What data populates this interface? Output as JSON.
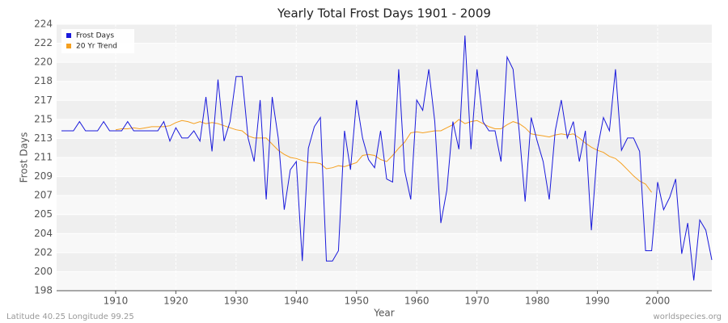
{
  "chart_data": {
    "type": "line",
    "title": "Yearly Total Frost Days 1901 - 2009",
    "x_label": "Year",
    "y_label": "Frost Days",
    "footer_left": "Latitude 40.25 Longitude 99.25",
    "footer_right": "worldspecies.org",
    "xlim": [
      1900.2,
      2009
    ],
    "xticks": [
      1910,
      1920,
      1930,
      1940,
      1950,
      1960,
      1970,
      1980,
      1990,
      2000
    ],
    "ylim": [
      198,
      224
    ],
    "yticks": [
      198,
      {
        "value": 199.857,
        "label": "200"
      },
      {
        "value": 201.714,
        "label": "202"
      },
      {
        "value": 203.571,
        "label": "204"
      },
      {
        "value": 205.429,
        "label": "205"
      },
      {
        "value": 207.286,
        "label": "207"
      },
      {
        "value": 209.143,
        "label": "209"
      },
      211,
      {
        "value": 212.857,
        "label": "213"
      },
      {
        "value": 214.714,
        "label": "215"
      },
      {
        "value": 216.571,
        "label": "217"
      },
      {
        "value": 218.429,
        "label": "218"
      },
      {
        "value": 220.286,
        "label": "220"
      },
      {
        "value": 222.143,
        "label": "222"
      },
      224
    ],
    "grid": true,
    "legend": "top-left",
    "x": [
      1901,
      1902,
      1903,
      1904,
      1905,
      1906,
      1907,
      1908,
      1909,
      1910,
      1911,
      1912,
      1913,
      1914,
      1915,
      1916,
      1917,
      1918,
      1919,
      1920,
      1921,
      1922,
      1923,
      1924,
      1925,
      1926,
      1927,
      1928,
      1929,
      1930,
      1931,
      1932,
      1933,
      1934,
      1935,
      1936,
      1937,
      1938,
      1939,
      1940,
      1941,
      1942,
      1943,
      1944,
      1945,
      1946,
      1947,
      1948,
      1949,
      1950,
      1951,
      1952,
      1953,
      1954,
      1955,
      1956,
      1957,
      1958,
      1959,
      1960,
      1961,
      1962,
      1963,
      1964,
      1965,
      1966,
      1967,
      1968,
      1969,
      1970,
      1971,
      1972,
      1973,
      1974,
      1975,
      1976,
      1977,
      1978,
      1979,
      1980,
      1981,
      1982,
      1983,
      1984,
      1985,
      1986,
      1987,
      1988,
      1989,
      1990,
      1991,
      1992,
      1993,
      1994,
      1995,
      1996,
      1997,
      1998,
      1999,
      2000,
      2001,
      2002,
      2003,
      2004,
      2005,
      2006,
      2007,
      2008,
      2009
    ],
    "series": [
      {
        "name": "Frost Days",
        "color": "#1a1adb",
        "values": [
          213.6,
          213.6,
          213.6,
          214.5,
          213.6,
          213.6,
          213.6,
          214.5,
          213.6,
          213.6,
          213.6,
          214.5,
          213.6,
          213.6,
          213.6,
          213.6,
          213.6,
          214.5,
          212.6,
          213.9,
          212.9,
          212.9,
          213.6,
          212.6,
          216.9,
          211.6,
          218.6,
          212.6,
          214.5,
          218.9,
          218.9,
          212.9,
          210.6,
          216.6,
          206.9,
          216.9,
          212.9,
          205.9,
          209.8,
          210.6,
          200.9,
          211.9,
          214.0,
          214.9,
          200.9,
          200.9,
          201.9,
          213.6,
          209.8,
          216.6,
          212.9,
          210.8,
          210.0,
          213.6,
          208.9,
          208.6,
          219.6,
          209.7,
          206.9,
          216.6,
          215.6,
          219.6,
          214.5,
          204.6,
          207.8,
          214.5,
          211.8,
          222.9,
          211.8,
          219.6,
          214.5,
          213.6,
          213.6,
          210.6,
          220.8,
          219.6,
          213.6,
          206.7,
          214.9,
          212.6,
          210.6,
          206.9,
          213.6,
          216.6,
          212.9,
          214.5,
          210.6,
          213.6,
          203.9,
          211.8,
          214.9,
          213.6,
          219.6,
          211.7,
          212.9,
          212.9,
          211.6,
          201.9,
          201.9,
          208.6,
          205.9,
          207.1,
          208.9,
          201.6,
          204.6,
          199.0,
          204.9,
          203.9,
          201.0
        ]
      },
      {
        "name": "20 Yr Trend",
        "color": "#f5a020",
        "values": [
          null,
          null,
          null,
          null,
          null,
          null,
          null,
          null,
          null,
          213.7,
          213.8,
          213.8,
          213.9,
          213.8,
          213.9,
          214.0,
          214.0,
          214.0,
          214.1,
          214.4,
          214.6,
          214.5,
          214.3,
          214.5,
          214.3,
          214.4,
          214.3,
          214.1,
          213.9,
          213.7,
          213.6,
          213.1,
          212.9,
          212.9,
          212.9,
          212.3,
          211.7,
          211.3,
          211.0,
          210.9,
          210.7,
          210.5,
          210.5,
          210.4,
          209.9,
          210.0,
          210.2,
          210.1,
          210.3,
          210.5,
          211.2,
          211.3,
          211.2,
          210.8,
          210.6,
          211.2,
          211.9,
          212.5,
          213.4,
          213.5,
          213.4,
          213.5,
          213.6,
          213.6,
          213.9,
          214.2,
          214.7,
          214.3,
          214.5,
          214.6,
          214.3,
          214.0,
          213.8,
          213.8,
          214.2,
          214.5,
          214.3,
          213.9,
          213.3,
          213.2,
          213.1,
          213.0,
          213.2,
          213.3,
          213.2,
          213.3,
          212.9,
          212.4,
          212.0,
          211.7,
          211.5,
          211.1,
          210.9,
          210.4,
          209.8,
          209.2,
          208.7,
          208.4,
          207.6,
          null,
          null,
          null,
          null,
          null,
          null,
          null,
          null,
          null,
          null
        ]
      }
    ]
  }
}
